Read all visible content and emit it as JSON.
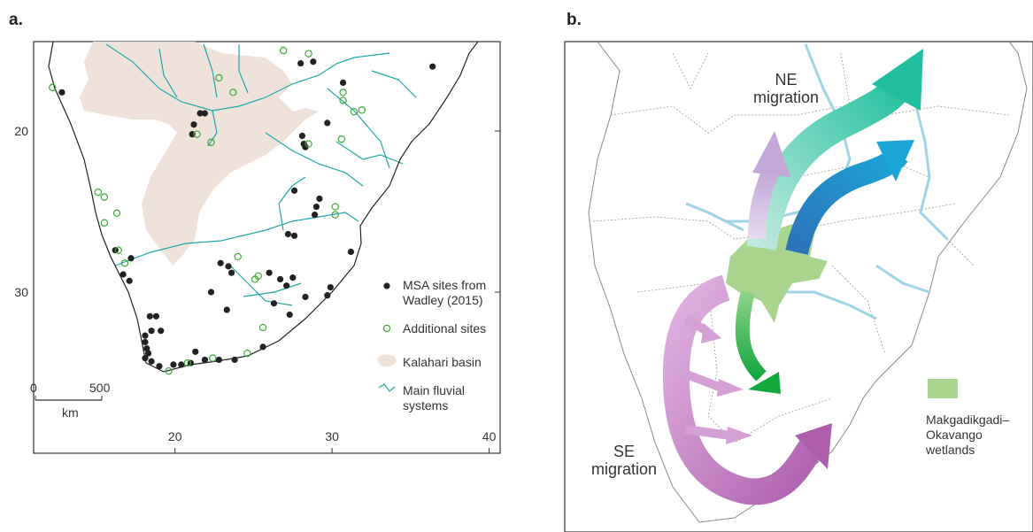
{
  "panel_a": {
    "label": "a.",
    "xlim": [
      11,
      40.7
    ],
    "ylim": [
      14.45,
      40
    ],
    "xticks": [
      20,
      30,
      40
    ],
    "yticks": [
      20,
      30
    ],
    "series": [
      {
        "name": "MSA sites from Wadley (2015)",
        "color": "#222222",
        "marker": "filled",
        "points": [
          [
            12.8,
            17.6
          ],
          [
            21.6,
            18.9
          ],
          [
            21.9,
            18.9
          ],
          [
            21.2,
            19.6
          ],
          [
            21.1,
            20.2
          ],
          [
            28.0,
            15.8
          ],
          [
            28.8,
            15.7
          ],
          [
            30.7,
            17.0
          ],
          [
            36.4,
            16.0
          ],
          [
            29.7,
            19.5
          ],
          [
            28.1,
            20.3
          ],
          [
            28.2,
            20.8
          ],
          [
            28.3,
            21.0
          ],
          [
            27.6,
            23.7
          ],
          [
            29.2,
            24.2
          ],
          [
            29.0,
            24.7
          ],
          [
            28.9,
            25.2
          ],
          [
            27.6,
            26.5
          ],
          [
            27.2,
            26.4
          ],
          [
            31.2,
            27.5
          ],
          [
            22.9,
            28.2
          ],
          [
            23.4,
            28.4
          ],
          [
            23.6,
            28.8
          ],
          [
            22.3,
            30.0
          ],
          [
            26.0,
            28.8
          ],
          [
            26.7,
            29.2
          ],
          [
            27.5,
            29.1
          ],
          [
            27.1,
            29.6
          ],
          [
            26.3,
            30.7
          ],
          [
            27.3,
            31.4
          ],
          [
            28.3,
            30.3
          ],
          [
            29.9,
            29.7
          ],
          [
            29.7,
            30.2
          ],
          [
            23.3,
            31.1
          ],
          [
            18.4,
            31.5
          ],
          [
            18.8,
            31.5
          ],
          [
            18.5,
            32.4
          ],
          [
            19.1,
            32.4
          ],
          [
            18.1,
            32.7
          ],
          [
            18.1,
            33.1
          ],
          [
            18.2,
            33.5
          ],
          [
            18.3,
            33.8
          ],
          [
            18.1,
            34.1
          ],
          [
            18.5,
            34.3
          ],
          [
            19.0,
            34.6
          ],
          [
            19.9,
            34.5
          ],
          [
            20.4,
            34.5
          ],
          [
            21.0,
            34.4
          ],
          [
            21.3,
            33.7
          ],
          [
            21.9,
            34.2
          ],
          [
            22.8,
            34.2
          ],
          [
            23.8,
            34.2
          ],
          [
            25.6,
            33.4
          ],
          [
            16.2,
            27.4
          ],
          [
            16.7,
            28.9
          ],
          [
            17.1,
            29.3
          ],
          [
            17.2,
            27.9
          ]
        ]
      },
      {
        "name": "Additional sites",
        "color": "#3aaa35",
        "marker": "open",
        "points": [
          [
            12.2,
            17.3
          ],
          [
            26.9,
            15.0
          ],
          [
            28.5,
            15.2
          ],
          [
            22.8,
            16.7
          ],
          [
            23.7,
            17.6
          ],
          [
            30.7,
            17.6
          ],
          [
            30.7,
            18.1
          ],
          [
            31.4,
            18.8
          ],
          [
            31.9,
            18.7
          ],
          [
            22.3,
            20.7
          ],
          [
            21.4,
            20.2
          ],
          [
            28.5,
            20.8
          ],
          [
            30.6,
            20.5
          ],
          [
            15.1,
            23.8
          ],
          [
            15.5,
            24.1
          ],
          [
            16.3,
            25.1
          ],
          [
            15.5,
            25.7
          ],
          [
            16.4,
            27.4
          ],
          [
            16.8,
            28.2
          ],
          [
            24.0,
            27.8
          ],
          [
            25.1,
            29.2
          ],
          [
            25.3,
            29.0
          ],
          [
            30.2,
            24.7
          ],
          [
            30.2,
            25.2
          ],
          [
            25.6,
            32.2
          ],
          [
            24.6,
            33.8
          ],
          [
            22.4,
            34.1
          ],
          [
            20.8,
            34.4
          ],
          [
            19.6,
            34.9
          ]
        ]
      }
    ],
    "legend_extra": [
      "Kalahari basin",
      "Main fluvial systems"
    ],
    "scale_bar": {
      "start": 0,
      "end": 500,
      "unit": "km"
    }
  },
  "panel_b": {
    "label": "b.",
    "annotations": [
      "NE migration",
      "SE migration"
    ],
    "legend": "Makgadikgadi–Okavango wetlands"
  }
}
